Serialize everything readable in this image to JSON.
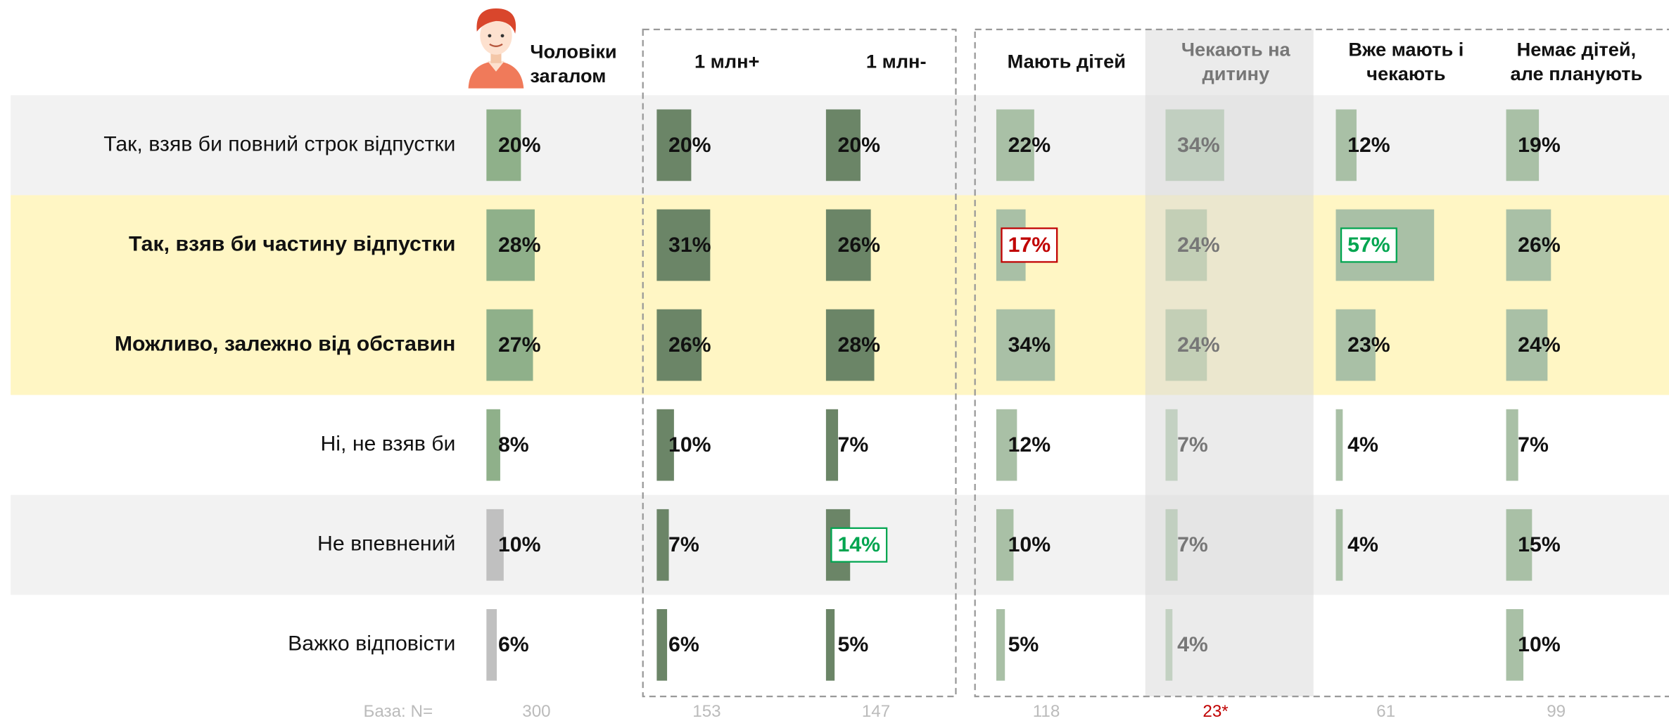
{
  "chart_data": {
    "type": "bar",
    "categories": [
      "Так, взяв би повний строк відпустки",
      "Так, взяв би частину відпустки",
      "Можливо, залежно від обставин",
      "Ні, не взяв би",
      "Не впевнений",
      "Важко відповісти"
    ],
    "emphasized_rows": [
      1,
      2
    ],
    "xlim": [
      0,
      100
    ],
    "series": [
      {
        "name": "Чоловіки загалом",
        "colors": [
          "#8fb08a",
          "#8fb08a",
          "#8fb08a",
          "#8fb08a",
          "#c0c0c0",
          "#c0c0c0"
        ],
        "values": [
          20,
          28,
          27,
          8,
          10,
          6
        ],
        "value_labels": [
          "20%",
          "28%",
          "27%",
          "8%",
          "10%",
          "6%"
        ]
      },
      {
        "name": "1 млн+",
        "color": "#6b8567",
        "values": [
          20,
          31,
          26,
          10,
          7,
          6
        ],
        "value_labels": [
          "20%",
          "31%",
          "26%",
          "10%",
          "7%",
          "6%"
        ]
      },
      {
        "name": "1 млн-",
        "color": "#6b8567",
        "values": [
          20,
          26,
          28,
          7,
          14,
          5
        ],
        "value_labels": [
          "20%",
          "26%",
          "28%",
          "7%",
          "14%",
          "5%"
        ]
      },
      {
        "name": "Мають дітей",
        "color": "#a9c0a6",
        "values": [
          22,
          17,
          34,
          12,
          10,
          5
        ],
        "value_labels": [
          "22%",
          "17%",
          "34%",
          "12%",
          "10%",
          "5%"
        ]
      },
      {
        "name": "Чекають на дитину",
        "color": "#a9c0a6",
        "muted": true,
        "values": [
          34,
          24,
          24,
          7,
          7,
          4
        ],
        "value_labels": [
          "34%",
          "24%",
          "24%",
          "7%",
          "7%",
          "4%"
        ]
      },
      {
        "name": "Вже мають і чекають",
        "color": "#a9c0a6",
        "values": [
          12,
          57,
          23,
          4,
          4,
          null
        ],
        "value_labels": [
          "12%",
          "57%",
          "23%",
          "4%",
          "4%",
          null
        ]
      },
      {
        "name": "Немає дітей, але планують",
        "color": "#a9c0a6",
        "values": [
          19,
          26,
          24,
          7,
          15,
          10
        ],
        "value_labels": [
          "19%",
          "26%",
          "24%",
          "7%",
          "15%",
          "10%"
        ]
      }
    ],
    "highlights": [
      {
        "series": 3,
        "row": 1,
        "color": "#c00000"
      },
      {
        "series": 5,
        "row": 1,
        "color": "#00a550"
      },
      {
        "series": 2,
        "row": 4,
        "color": "#00a550"
      }
    ],
    "base_title": "База: N=",
    "bases": [
      300,
      153,
      147,
      118,
      {
        "value": 23,
        "label": "23*",
        "color": "#c00000"
      },
      61,
      99
    ]
  }
}
